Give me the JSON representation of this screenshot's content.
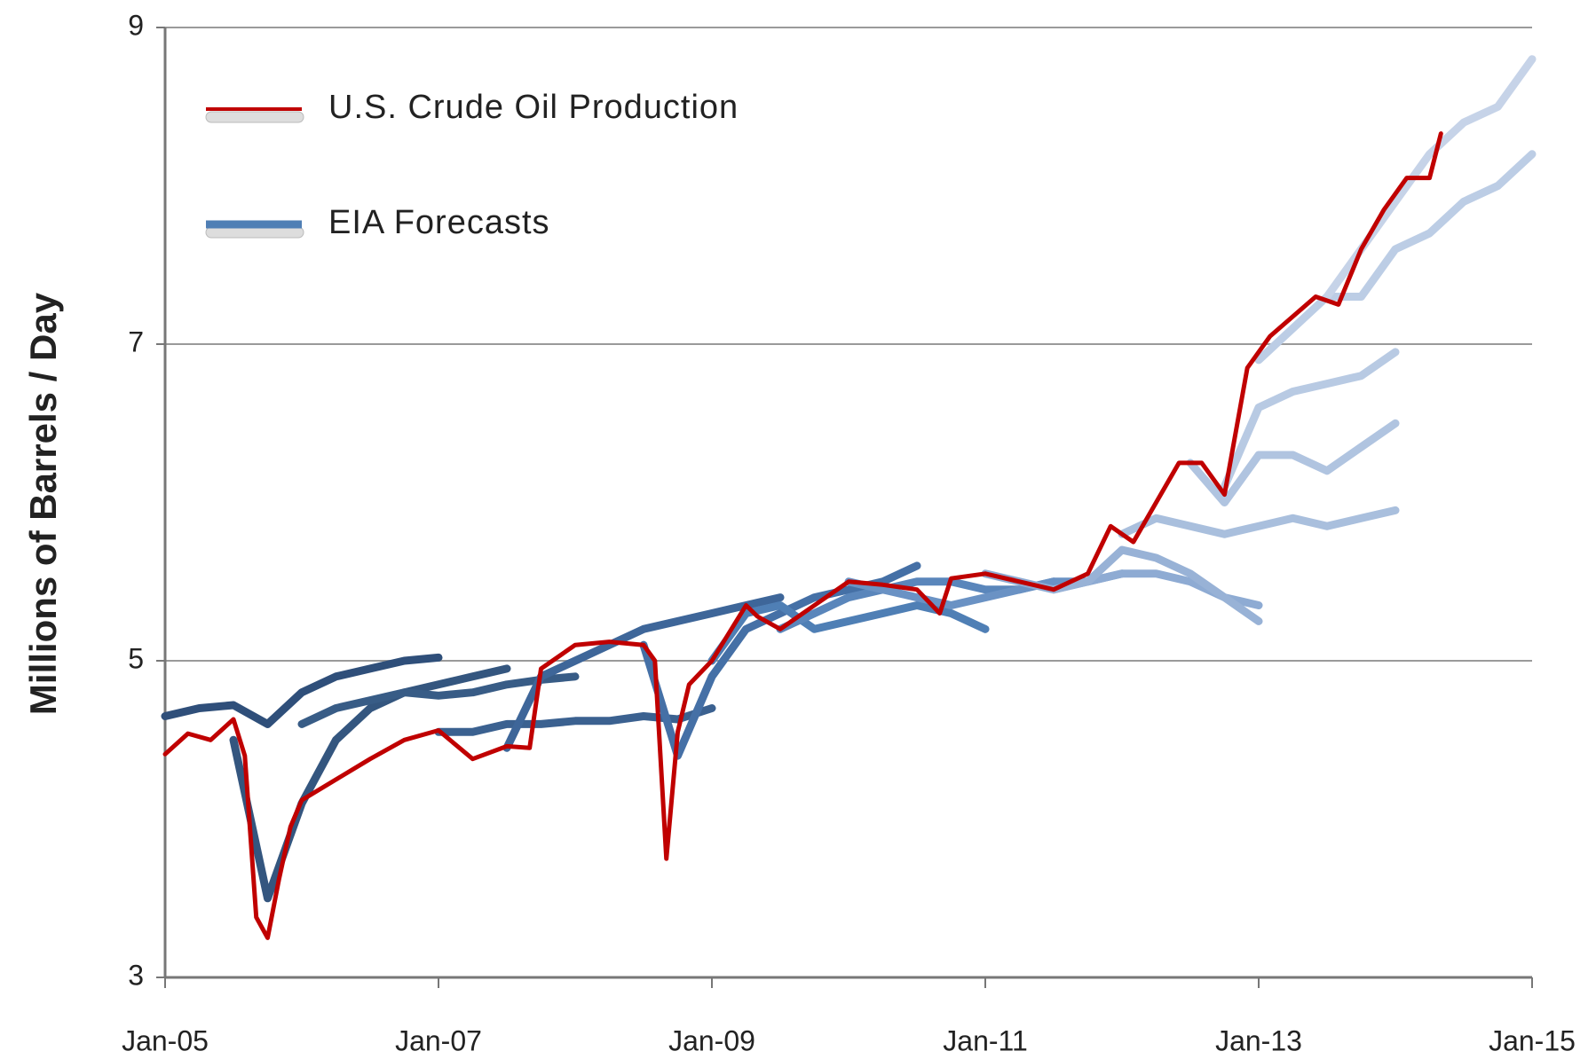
{
  "chart_data": {
    "type": "line",
    "y_label": "Millions of Barrels / Day",
    "xlim": [
      "2005-01",
      "2015-01"
    ],
    "xticks": [
      {
        "value": "2005-01",
        "label": "Jan-05"
      },
      {
        "value": "2007-01",
        "label": "Jan-07"
      },
      {
        "value": "2009-01",
        "label": "Jan-09"
      },
      {
        "value": "2011-01",
        "label": "Jan-11"
      },
      {
        "value": "2013-01",
        "label": "Jan-13"
      },
      {
        "value": "2015-01",
        "label": "Jan-15"
      }
    ],
    "ylim": [
      3,
      9
    ],
    "yticks": [
      3,
      5,
      7,
      9
    ],
    "grid": true,
    "legend": "upper left",
    "series": [
      {
        "name": "U.S. Crude Oil Production",
        "color": "#c00000",
        "x": [
          "2005-01",
          "2005-03",
          "2005-05",
          "2005-07",
          "2005-08",
          "2005-09",
          "2005-10",
          "2005-11",
          "2005-12",
          "2006-01",
          "2006-04",
          "2006-07",
          "2006-10",
          "2007-01",
          "2007-04",
          "2007-07",
          "2007-09",
          "2007-10",
          "2008-01",
          "2008-04",
          "2008-07",
          "2008-08",
          "2008-09",
          "2008-10",
          "2008-11",
          "2009-01",
          "2009-04",
          "2009-05",
          "2009-07",
          "2009-10",
          "2010-01",
          "2010-04",
          "2010-07",
          "2010-09",
          "2010-10",
          "2011-01",
          "2011-04",
          "2011-07",
          "2011-10",
          "2011-12",
          "2012-02",
          "2012-04",
          "2012-06",
          "2012-08",
          "2012-10",
          "2012-12",
          "2013-02",
          "2013-06",
          "2013-08",
          "2013-10",
          "2013-12",
          "2014-02",
          "2014-04",
          "2014-05"
        ],
        "values": [
          4.41,
          4.54,
          4.5,
          4.63,
          4.4,
          3.38,
          3.25,
          3.62,
          3.95,
          4.12,
          4.25,
          4.38,
          4.5,
          4.56,
          4.38,
          4.46,
          4.45,
          4.95,
          5.1,
          5.12,
          5.1,
          5.0,
          3.75,
          4.55,
          4.85,
          5.0,
          5.35,
          5.28,
          5.2,
          5.35,
          5.5,
          5.48,
          5.45,
          5.3,
          5.52,
          5.55,
          5.5,
          5.45,
          5.55,
          5.85,
          5.75,
          6.0,
          6.25,
          6.25,
          6.05,
          6.85,
          7.05,
          7.3,
          7.25,
          7.6,
          7.85,
          8.05,
          8.05,
          8.33
        ]
      },
      {
        "name": "EIA Forecasts",
        "color": "#4f7fb5",
        "lines": [
          {
            "color": "#2f4f7a",
            "x": [
              "2005-01",
              "2005-04",
              "2005-07",
              "2005-10",
              "2006-01",
              "2006-04",
              "2006-07",
              "2006-10",
              "2007-01"
            ],
            "values": [
              4.65,
              4.7,
              4.72,
              4.6,
              4.8,
              4.9,
              4.95,
              5.0,
              5.02
            ]
          },
          {
            "color": "#34567f",
            "x": [
              "2005-07",
              "2005-10",
              "2006-01",
              "2006-04",
              "2006-07",
              "2006-10",
              "2007-01",
              "2007-04",
              "2007-07"
            ],
            "values": [
              4.5,
              3.5,
              4.1,
              4.5,
              4.7,
              4.8,
              4.85,
              4.9,
              4.95
            ]
          },
          {
            "color": "#385c86",
            "x": [
              "2006-01",
              "2006-04",
              "2006-07",
              "2006-10",
              "2007-01",
              "2007-04",
              "2007-07",
              "2007-10",
              "2008-01"
            ],
            "values": [
              4.6,
              4.7,
              4.75,
              4.8,
              4.78,
              4.8,
              4.85,
              4.88,
              4.9
            ]
          },
          {
            "color": "#3b6190",
            "x": [
              "2007-01",
              "2007-04",
              "2007-07",
              "2007-10",
              "2008-01",
              "2008-04",
              "2008-07",
              "2008-10",
              "2009-01"
            ],
            "values": [
              4.55,
              4.55,
              4.6,
              4.6,
              4.62,
              4.62,
              4.65,
              4.63,
              4.7
            ]
          },
          {
            "color": "#3e6699",
            "x": [
              "2007-07",
              "2007-10",
              "2008-01",
              "2008-04",
              "2008-07",
              "2008-10",
              "2009-01",
              "2009-04",
              "2009-07"
            ],
            "values": [
              4.45,
              4.9,
              5.0,
              5.1,
              5.2,
              5.25,
              5.3,
              5.35,
              5.4
            ]
          },
          {
            "color": "#4570a6",
            "x": [
              "2008-07",
              "2008-10",
              "2009-01",
              "2009-04",
              "2009-07",
              "2009-10",
              "2010-01",
              "2010-04",
              "2010-07"
            ],
            "values": [
              5.1,
              4.4,
              4.9,
              5.2,
              5.3,
              5.4,
              5.45,
              5.5,
              5.6
            ]
          },
          {
            "color": "#4f7fb5",
            "x": [
              "2009-01",
              "2009-04",
              "2009-07",
              "2009-10",
              "2010-01",
              "2010-04",
              "2010-07",
              "2010-10",
              "2011-01"
            ],
            "values": [
              5.0,
              5.3,
              5.35,
              5.2,
              5.25,
              5.3,
              5.35,
              5.3,
              5.2
            ]
          },
          {
            "color": "#5a86bb",
            "x": [
              "2009-07",
              "2009-10",
              "2010-01",
              "2010-04",
              "2010-07",
              "2010-10",
              "2011-01",
              "2011-04",
              "2011-07"
            ],
            "values": [
              5.2,
              5.3,
              5.4,
              5.45,
              5.5,
              5.5,
              5.45,
              5.45,
              5.5
            ]
          },
          {
            "color": "#6a92c4",
            "x": [
              "2010-01",
              "2010-04",
              "2010-07",
              "2010-10",
              "2011-01",
              "2011-04",
              "2011-07",
              "2011-10",
              "2012-01"
            ],
            "values": [
              5.5,
              5.45,
              5.4,
              5.35,
              5.4,
              5.45,
              5.5,
              5.5,
              5.55
            ]
          },
          {
            "color": "#8eabd3",
            "x": [
              "2011-01",
              "2011-04",
              "2011-07",
              "2011-10",
              "2012-01",
              "2012-04",
              "2012-07",
              "2012-10",
              "2013-01"
            ],
            "values": [
              5.55,
              5.5,
              5.45,
              5.5,
              5.55,
              5.55,
              5.5,
              5.4,
              5.35
            ]
          },
          {
            "color": "#98b2d6",
            "x": [
              "2011-07",
              "2011-10",
              "2012-01",
              "2012-04",
              "2012-07",
              "2012-10",
              "2013-01"
            ],
            "values": [
              5.45,
              5.5,
              5.7,
              5.65,
              5.55,
              5.4,
              5.25
            ]
          },
          {
            "color": "#a9bfdd",
            "x": [
              "2012-01",
              "2012-04",
              "2012-07",
              "2012-10",
              "2013-01",
              "2013-04",
              "2013-07",
              "2013-10",
              "2014-01"
            ],
            "values": [
              5.8,
              5.9,
              5.85,
              5.8,
              5.85,
              5.9,
              5.85,
              5.9,
              5.95
            ]
          },
          {
            "color": "#b0c4e0",
            "x": [
              "2012-07",
              "2012-10",
              "2013-01",
              "2013-04",
              "2013-07",
              "2013-10",
              "2014-01"
            ],
            "values": [
              6.25,
              6.0,
              6.3,
              6.3,
              6.2,
              6.35,
              6.5
            ]
          },
          {
            "color": "#b8cae3",
            "x": [
              "2012-10",
              "2013-01",
              "2013-04",
              "2013-07",
              "2013-10",
              "2014-01"
            ],
            "values": [
              6.1,
              6.6,
              6.7,
              6.75,
              6.8,
              6.95
            ]
          },
          {
            "color": "#bccde5",
            "x": [
              "2013-01",
              "2013-04",
              "2013-07",
              "2013-10",
              "2014-01",
              "2014-04",
              "2014-07",
              "2014-10",
              "2015-01"
            ],
            "values": [
              6.9,
              7.1,
              7.3,
              7.3,
              7.6,
              7.7,
              7.9,
              8.0,
              8.2
            ]
          },
          {
            "color": "#c6d3e8",
            "x": [
              "2013-07",
              "2013-10",
              "2014-01",
              "2014-04",
              "2014-07",
              "2014-10",
              "2015-01"
            ],
            "values": [
              7.3,
              7.6,
              7.9,
              8.2,
              8.4,
              8.5,
              8.8
            ]
          }
        ]
      }
    ]
  }
}
